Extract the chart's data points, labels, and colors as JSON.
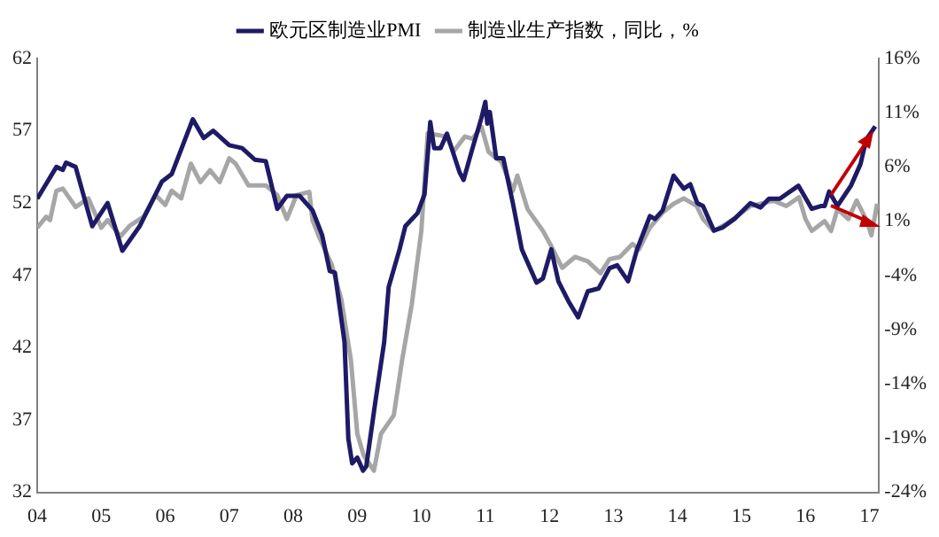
{
  "chart_data": {
    "type": "line",
    "xlim": [
      2004,
      2017.15
    ],
    "xticks": [
      {
        "value": 2004,
        "label": "04"
      },
      {
        "value": 2005,
        "label": "05"
      },
      {
        "value": 2006,
        "label": "06"
      },
      {
        "value": 2007,
        "label": "07"
      },
      {
        "value": 2008,
        "label": "08"
      },
      {
        "value": 2009,
        "label": "09"
      },
      {
        "value": 2010,
        "label": "10"
      },
      {
        "value": 2011,
        "label": "11"
      },
      {
        "value": 2012,
        "label": "12"
      },
      {
        "value": 2013,
        "label": "13"
      },
      {
        "value": 2014,
        "label": "14"
      },
      {
        "value": 2015,
        "label": "15"
      },
      {
        "value": 2016,
        "label": "16"
      },
      {
        "value": 2017,
        "label": "17"
      }
    ],
    "ylim": [
      32,
      62
    ],
    "yticks": [
      32,
      37,
      42,
      47,
      52,
      57,
      62
    ],
    "y2lim": [
      -24,
      16
    ],
    "y2ticks": [
      {
        "value": -24,
        "label": "-24%"
      },
      {
        "value": -19,
        "label": "-19%"
      },
      {
        "value": -14,
        "label": "-14%"
      },
      {
        "value": -9,
        "label": "-9%"
      },
      {
        "value": -4,
        "label": "-4%"
      },
      {
        "value": 1,
        "label": "1%"
      },
      {
        "value": 6,
        "label": "6%"
      },
      {
        "value": 11,
        "label": "11%"
      },
      {
        "value": 16,
        "label": "16%"
      }
    ],
    "grid": false,
    "legend": "top",
    "marker": "none",
    "line_style": "solid",
    "series": [
      {
        "name": "欧元区制造业PMI",
        "color": "#1f1a66",
        "x": [
          2004.0,
          2004.3,
          2004.4,
          2004.45,
          2004.6,
          2004.86,
          2005.1,
          2005.33,
          2005.6,
          2005.95,
          2006.1,
          2006.43,
          2006.6,
          2006.75,
          2007.0,
          2007.2,
          2007.4,
          2007.57,
          2007.75,
          2007.9,
          2008.1,
          2008.3,
          2008.45,
          2008.57,
          2008.65,
          2008.8,
          2008.86,
          2008.92,
          2009.0,
          2009.09,
          2009.14,
          2009.28,
          2009.42,
          2009.49,
          2009.66,
          2009.75,
          2009.94,
          2010.05,
          2010.14,
          2010.2,
          2010.3,
          2010.4,
          2010.6,
          2010.66,
          2010.8,
          2010.94,
          2011.0,
          2011.03,
          2011.07,
          2011.17,
          2011.28,
          2011.43,
          2011.57,
          2011.8,
          2011.9,
          2012.03,
          2012.14,
          2012.3,
          2012.45,
          2012.6,
          2012.77,
          2012.94,
          2013.06,
          2013.23,
          2013.37,
          2013.57,
          2013.65,
          2013.77,
          2013.94,
          2014.1,
          2014.2,
          2014.31,
          2014.4,
          2014.57,
          2014.7,
          2014.89,
          2015.14,
          2015.3,
          2015.43,
          2015.6,
          2015.89,
          2016.1,
          2016.25,
          2016.3,
          2016.37,
          2016.5,
          2016.71,
          2016.86,
          2016.95,
          2017.09
        ],
        "values": [
          52.3,
          54.5,
          54.3,
          54.8,
          54.5,
          50.4,
          52,
          48.7,
          50.4,
          53.5,
          54,
          57.8,
          56.5,
          57,
          56,
          55.8,
          55,
          54.9,
          51.6,
          52.5,
          52.5,
          51.5,
          49.8,
          47.3,
          47.2,
          42.4,
          35.7,
          34,
          34.4,
          33.5,
          33.8,
          38.2,
          42.4,
          46.2,
          48.8,
          50.4,
          51.3,
          52.6,
          57.6,
          55.8,
          55.8,
          56.8,
          54.1,
          53.6,
          55.8,
          57.9,
          59,
          57.5,
          58.3,
          55.1,
          55.1,
          52,
          48.8,
          46.5,
          46.8,
          48.8,
          46.6,
          45.2,
          44.1,
          45.9,
          46.1,
          47.5,
          47.7,
          46.6,
          48.8,
          51.1,
          50.9,
          51.5,
          53.9,
          53,
          53.3,
          52,
          51.8,
          50.1,
          50.3,
          50.9,
          52,
          51.7,
          52.3,
          52.3,
          53.2,
          51.6,
          51.8,
          51.8,
          52.8,
          51.8,
          53.2,
          54.7,
          56.4,
          57.3
        ]
      },
      {
        "name": "制造业生产指数，同比，%",
        "color": "#a6a6a6",
        "axis": "y2",
        "x": [
          2004.0,
          2004.14,
          2004.2,
          2004.3,
          2004.4,
          2004.6,
          2004.8,
          2005.0,
          2005.1,
          2005.3,
          2005.45,
          2005.66,
          2005.85,
          2006.0,
          2006.1,
          2006.25,
          2006.4,
          2006.55,
          2006.7,
          2006.85,
          2007.0,
          2007.1,
          2007.3,
          2007.57,
          2007.75,
          2007.9,
          2008.05,
          2008.25,
          2008.3,
          2008.4,
          2008.6,
          2008.75,
          2008.9,
          2009.0,
          2009.1,
          2009.26,
          2009.37,
          2009.57,
          2009.7,
          2009.85,
          2010.0,
          2010.1,
          2010.4,
          2010.5,
          2010.68,
          2010.8,
          2010.94,
          2011.05,
          2011.17,
          2011.25,
          2011.43,
          2011.5,
          2011.66,
          2011.9,
          2012.03,
          2012.2,
          2012.4,
          2012.6,
          2012.8,
          2012.94,
          2013.1,
          2013.3,
          2013.4,
          2013.57,
          2013.77,
          2013.94,
          2014.1,
          2014.3,
          2014.4,
          2014.57,
          2014.75,
          2014.94,
          2015.14,
          2015.3,
          2015.5,
          2015.7,
          2015.9,
          2016.0,
          2016.1,
          2016.3,
          2016.4,
          2016.5,
          2016.67,
          2016.8,
          2016.96,
          2017.03,
          2017.12
        ],
        "values": [
          0.4,
          1.4,
          1.1,
          3.8,
          4,
          2.3,
          3.1,
          0.4,
          1.1,
          -0.4,
          0.6,
          1.4,
          3.4,
          2.5,
          3.8,
          3.1,
          6.3,
          4.6,
          5.7,
          4.6,
          6.8,
          6.3,
          4.3,
          4.3,
          3.4,
          1.2,
          3.4,
          3.7,
          1.1,
          -0.4,
          -3,
          -6.2,
          -11.8,
          -18.6,
          -20.6,
          -22,
          -18.6,
          -16.9,
          -11.8,
          -6.7,
          0.1,
          9.1,
          8.8,
          7.4,
          8.8,
          8.6,
          9.7,
          7.4,
          6.8,
          6.5,
          3.8,
          5.2,
          2.1,
          0.1,
          -1.3,
          -3.3,
          -2.3,
          -2.7,
          -3.8,
          -2.5,
          -2.3,
          -1.1,
          -1.6,
          0.4,
          1.8,
          2.6,
          3.1,
          2.4,
          1.2,
          0.1,
          0.7,
          1.5,
          2.4,
          2.6,
          2.9,
          2.4,
          3.2,
          1.2,
          0.1,
          1,
          0.1,
          2.1,
          1.2,
          2.9,
          1,
          -0.3,
          2.6
        ]
      }
    ]
  }
}
